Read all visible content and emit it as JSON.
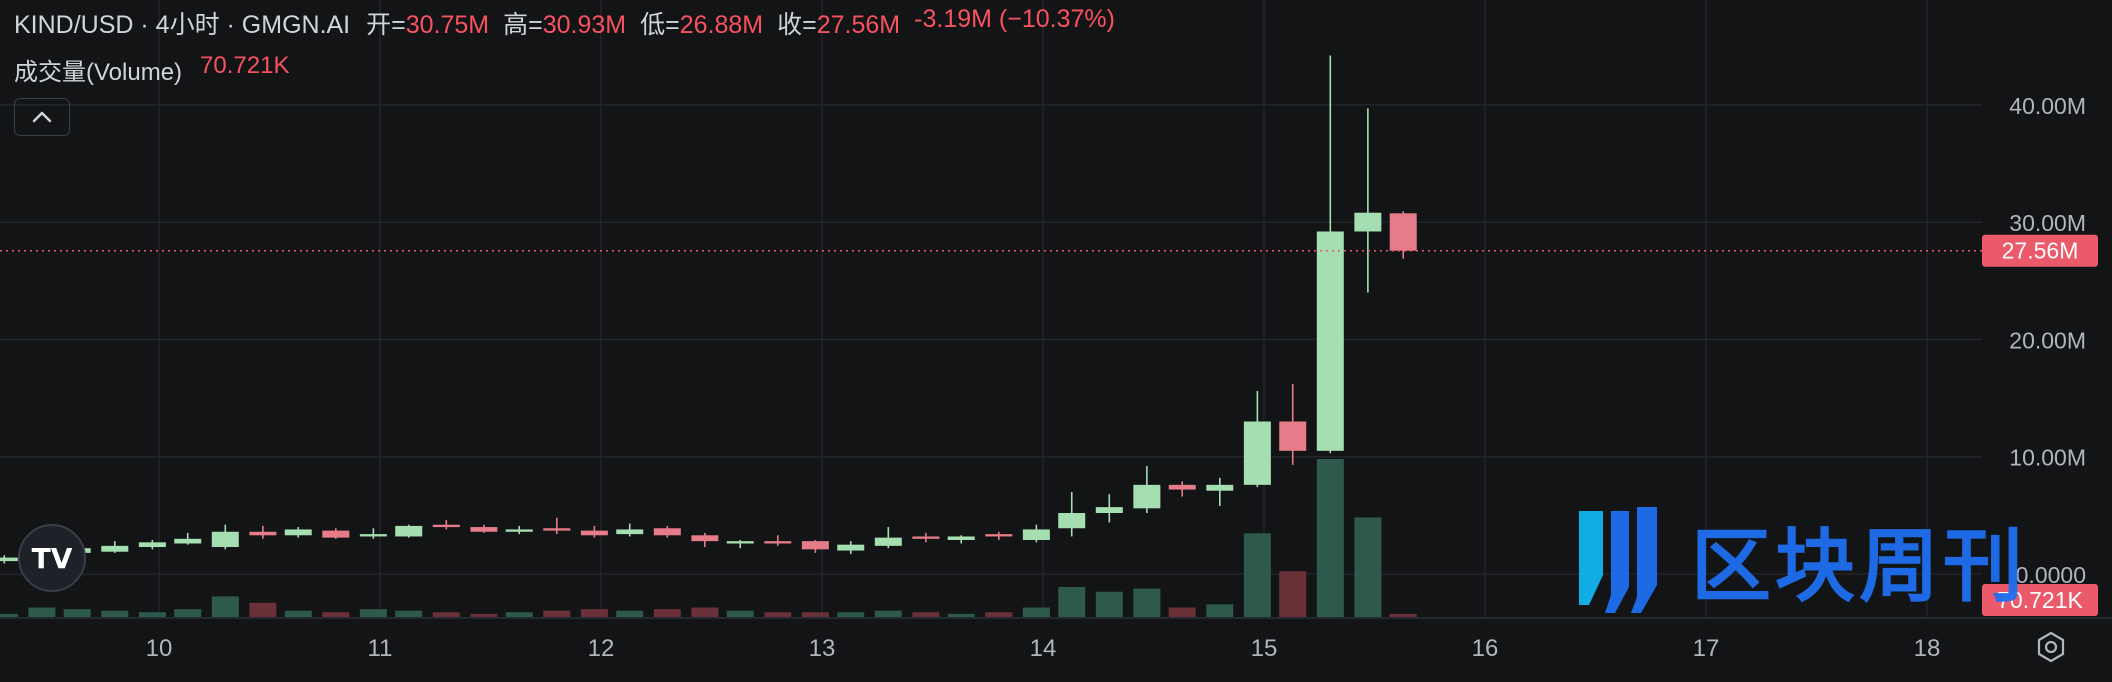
{
  "header": {
    "symbol": "KIND/USD · 4小时 · GMGN.AI",
    "ohlc": [
      {
        "key": "开=",
        "value": "30.75M"
      },
      {
        "key": "高=",
        "value": "30.93M"
      },
      {
        "key": "低=",
        "value": "26.88M"
      },
      {
        "key": "收=",
        "value": "27.56M"
      }
    ],
    "change": "-3.19M (−10.37%)"
  },
  "volume_legend": {
    "label": "成交量(Volume)",
    "value": "70.721K"
  },
  "watermark": {
    "text": "区块周刊"
  },
  "colors": {
    "background": "#131416",
    "up": "#a4deb1",
    "down": "#e67c89",
    "up_volume": "#2d5a4c",
    "down_volume": "#6a3238",
    "price_tag": "#eb5a6a"
  },
  "chart_data": {
    "type": "candlestick",
    "x_axis": {
      "ticks": [
        "10",
        "11",
        "12",
        "13",
        "14",
        "15",
        "16",
        "17",
        "18"
      ]
    },
    "y_axis": {
      "ticks": [
        "0.0000",
        "10.00M",
        "20.00M",
        "30.00M",
        "40.00M"
      ],
      "range_millions": [
        -4,
        48
      ]
    },
    "last_price_label": "27.56M",
    "last_volume_label": "70.721K",
    "candles": [
      {
        "day": 9.3,
        "open": 1.1,
        "high": 1.6,
        "low": 0.9,
        "close": 1.4
      },
      {
        "day": 9.47,
        "open": 1.4,
        "high": 2.1,
        "low": 1.3,
        "close": 1.8
      },
      {
        "day": 9.63,
        "open": 1.8,
        "high": 2.4,
        "low": 1.6,
        "close": 2.2
      },
      {
        "day": 9.8,
        "open": 1.9,
        "high": 2.8,
        "low": 1.8,
        "close": 2.4
      },
      {
        "day": 9.97,
        "open": 2.3,
        "high": 2.9,
        "low": 2.1,
        "close": 2.7
      },
      {
        "day": 10.13,
        "open": 2.6,
        "high": 3.5,
        "low": 2.5,
        "close": 3.0
      },
      {
        "day": 10.3,
        "open": 2.3,
        "high": 4.2,
        "low": 2.1,
        "close": 3.6
      },
      {
        "day": 10.47,
        "open": 3.6,
        "high": 4.1,
        "low": 3.0,
        "close": 3.3
      },
      {
        "day": 10.63,
        "open": 3.3,
        "high": 4.0,
        "low": 3.1,
        "close": 3.8
      },
      {
        "day": 10.8,
        "open": 3.7,
        "high": 3.9,
        "low": 3.0,
        "close": 3.1
      },
      {
        "day": 10.97,
        "open": 3.2,
        "high": 3.9,
        "low": 3.0,
        "close": 3.4
      },
      {
        "day": 11.13,
        "open": 3.2,
        "high": 4.2,
        "low": 3.1,
        "close": 4.1
      },
      {
        "day": 11.3,
        "open": 4.2,
        "high": 4.6,
        "low": 3.8,
        "close": 4.0
      },
      {
        "day": 11.47,
        "open": 4.0,
        "high": 4.2,
        "low": 3.5,
        "close": 3.6
      },
      {
        "day": 11.63,
        "open": 3.6,
        "high": 4.1,
        "low": 3.4,
        "close": 3.8
      },
      {
        "day": 11.8,
        "open": 3.9,
        "high": 4.8,
        "low": 3.4,
        "close": 3.7
      },
      {
        "day": 11.97,
        "open": 3.7,
        "high": 4.1,
        "low": 3.1,
        "close": 3.3
      },
      {
        "day": 12.13,
        "open": 3.4,
        "high": 4.3,
        "low": 3.2,
        "close": 3.8
      },
      {
        "day": 12.3,
        "open": 3.9,
        "high": 4.1,
        "low": 3.1,
        "close": 3.3
      },
      {
        "day": 12.47,
        "open": 3.3,
        "high": 3.5,
        "low": 2.3,
        "close": 2.8
      },
      {
        "day": 12.63,
        "open": 2.6,
        "high": 2.9,
        "low": 2.2,
        "close": 2.8
      },
      {
        "day": 12.8,
        "open": 2.8,
        "high": 3.3,
        "low": 2.4,
        "close": 2.6
      },
      {
        "day": 12.97,
        "open": 2.8,
        "high": 2.9,
        "low": 1.8,
        "close": 2.1
      },
      {
        "day": 13.13,
        "open": 2.0,
        "high": 2.8,
        "low": 1.7,
        "close": 2.5
      },
      {
        "day": 13.3,
        "open": 2.4,
        "high": 4.0,
        "low": 2.2,
        "close": 3.1
      },
      {
        "day": 13.47,
        "open": 3.2,
        "high": 3.5,
        "low": 2.7,
        "close": 3.0
      },
      {
        "day": 13.63,
        "open": 2.9,
        "high": 3.3,
        "low": 2.6,
        "close": 3.2
      },
      {
        "day": 13.8,
        "open": 3.4,
        "high": 3.6,
        "low": 2.9,
        "close": 3.2
      },
      {
        "day": 13.97,
        "open": 2.9,
        "high": 4.2,
        "low": 2.7,
        "close": 3.8
      },
      {
        "day": 14.13,
        "open": 3.9,
        "high": 7.0,
        "low": 3.2,
        "close": 5.2
      },
      {
        "day": 14.3,
        "open": 5.2,
        "high": 6.8,
        "low": 4.4,
        "close": 5.7
      },
      {
        "day": 14.47,
        "open": 5.6,
        "high": 9.2,
        "low": 5.2,
        "close": 7.6
      },
      {
        "day": 14.63,
        "open": 7.6,
        "high": 7.9,
        "low": 6.6,
        "close": 7.2
      },
      {
        "day": 14.8,
        "open": 7.1,
        "high": 8.2,
        "low": 5.8,
        "close": 7.6
      },
      {
        "day": 14.97,
        "open": 7.6,
        "high": 15.6,
        "low": 7.4,
        "close": 13.0
      },
      {
        "day": 15.13,
        "open": 13.0,
        "high": 16.2,
        "low": 9.3,
        "close": 10.5
      },
      {
        "day": 15.3,
        "open": 10.5,
        "high": 44.2,
        "low": 10.3,
        "close": 29.2
      },
      {
        "day": 15.47,
        "open": 29.2,
        "high": 39.7,
        "low": 24.0,
        "close": 30.8
      },
      {
        "day": 15.63,
        "open": 30.75,
        "high": 30.93,
        "low": 26.88,
        "close": 27.56
      }
    ],
    "volume_relative": [
      0.02,
      0.06,
      0.05,
      0.04,
      0.03,
      0.05,
      0.13,
      0.09,
      0.04,
      0.03,
      0.05,
      0.04,
      0.03,
      0.02,
      0.03,
      0.04,
      0.05,
      0.04,
      0.05,
      0.06,
      0.04,
      0.03,
      0.03,
      0.03,
      0.04,
      0.03,
      0.02,
      0.03,
      0.06,
      0.19,
      0.16,
      0.18,
      0.06,
      0.08,
      0.53,
      0.29,
      1.0,
      0.63,
      0.02
    ]
  }
}
